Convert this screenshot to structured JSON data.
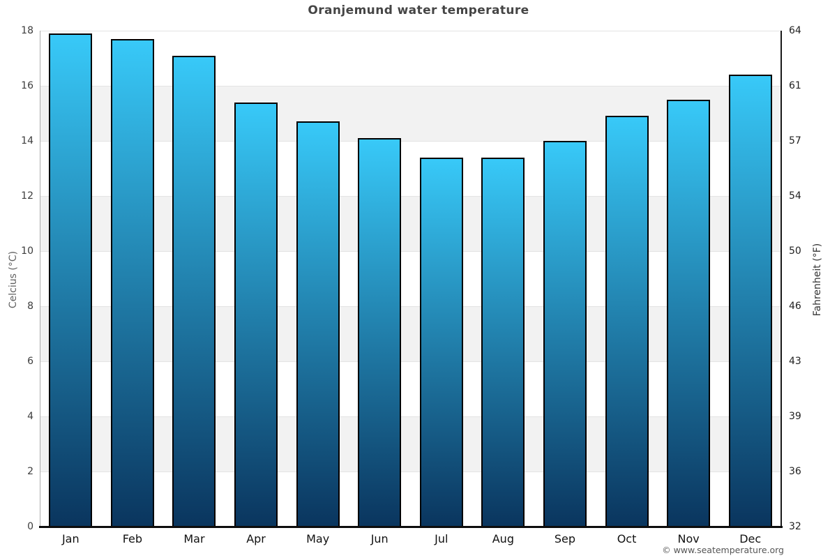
{
  "title": "Oranjemund water temperature",
  "copyright": "© www.seatemperature.org",
  "chart_data": {
    "type": "bar",
    "title": "Oranjemund water temperature",
    "categories": [
      "Jan",
      "Feb",
      "Mar",
      "Apr",
      "May",
      "Jun",
      "Jul",
      "Aug",
      "Sep",
      "Oct",
      "Nov",
      "Dec"
    ],
    "values": [
      17.9,
      17.7,
      17.1,
      15.4,
      14.7,
      14.1,
      13.4,
      13.4,
      14.0,
      14.9,
      15.5,
      16.4
    ],
    "series_unit": "°C",
    "ylabel_left": "Celcius (°C)",
    "ylabel_right": "Fahrenheit (°F)",
    "ylim_celsius": [
      0,
      18
    ],
    "celsius_ticks": [
      0,
      2,
      4,
      6,
      8,
      10,
      12,
      14,
      16,
      18
    ],
    "fahrenheit_ticks": [
      32,
      36,
      39,
      43,
      46,
      50,
      54,
      57,
      61,
      64
    ],
    "legend_position": "none",
    "grid": "alternating horizontal bands with light gridlines",
    "colors": {
      "bar_gradient_top": "#38c9f8",
      "bar_gradient_bottom": "#0a355e",
      "bar_border": "#000000",
      "band_gray": "#f2f2f2",
      "band_white": "#ffffff",
      "gridline": "#e3e3e3",
      "title_text": "#454545",
      "axis_bottom": "#0d0d0d"
    }
  }
}
